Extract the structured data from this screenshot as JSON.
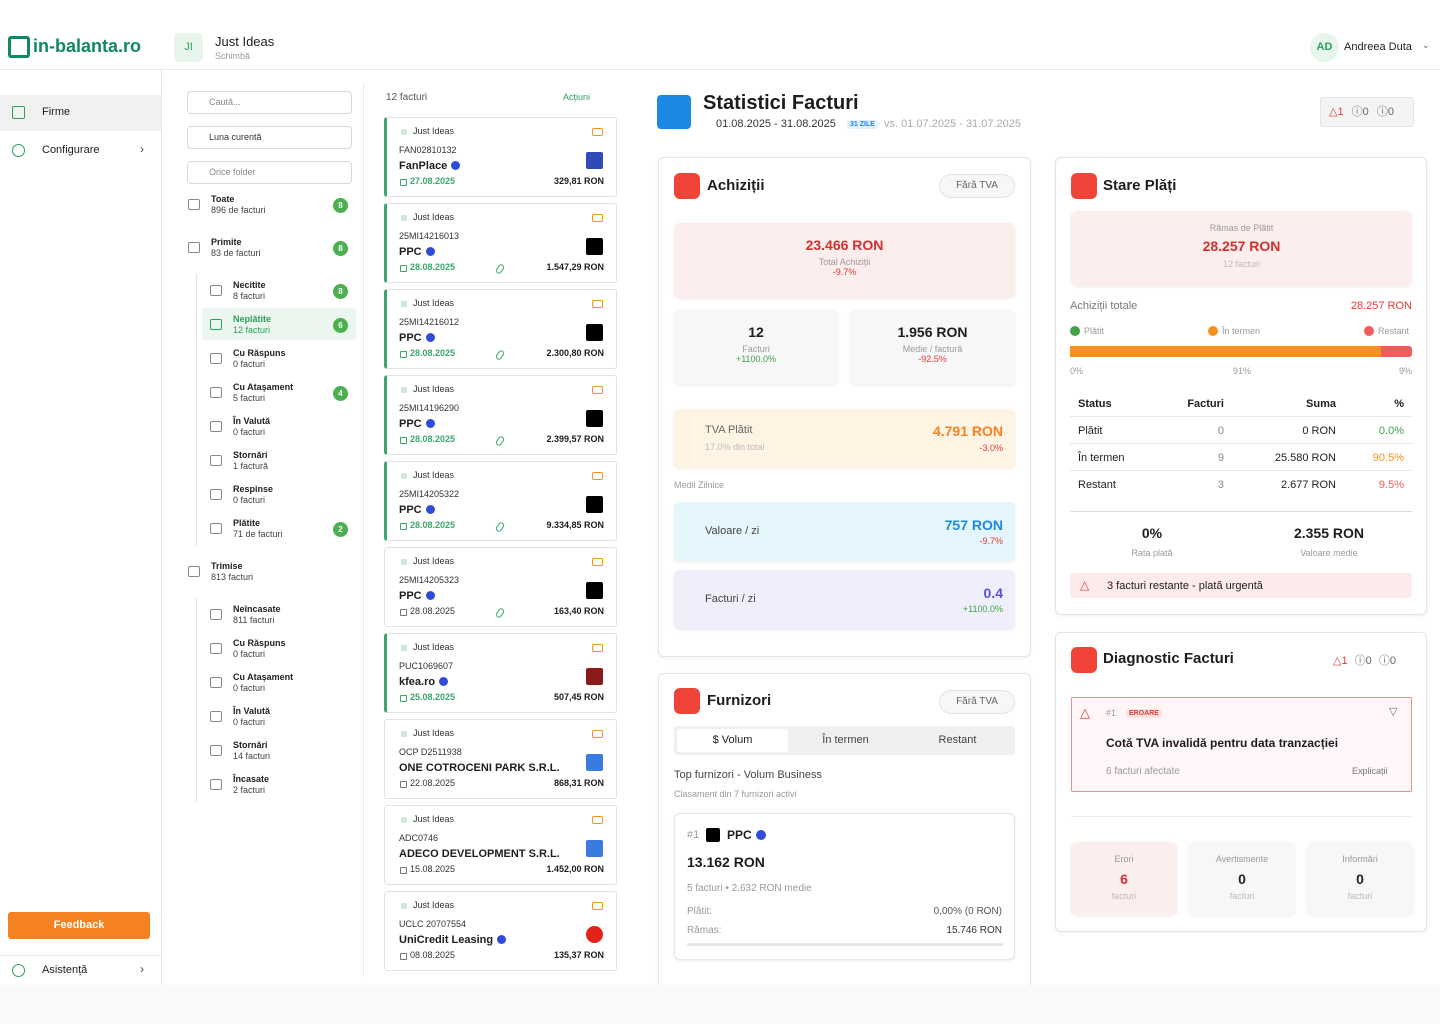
{
  "header": {
    "logo": "in-balanta.ro",
    "company": {
      "initials": "JI",
      "name": "Just Ideas",
      "action": "Schimbă"
    },
    "user": {
      "initials": "AD",
      "name": "Andreea Duta"
    }
  },
  "sidebar": {
    "nav": [
      "Firme",
      "Configurare"
    ],
    "feedback": "Feedback",
    "help": "Asistență"
  },
  "filters": {
    "search": "Caută...",
    "period": "Luna curentă",
    "folder": "Orice folder"
  },
  "folders": [
    {
      "label": "Toate",
      "count": "896 de facturi",
      "badge": 8,
      "level": 0
    },
    {
      "label": "Primite",
      "count": "83 de facturi",
      "badge": 8,
      "level": 0
    },
    {
      "label": "Necitite",
      "count": "8 facturi",
      "badge": 8,
      "level": 1
    },
    {
      "label": "Neplătite",
      "count": "12 facturi",
      "badge": 6,
      "level": 1,
      "active": true
    },
    {
      "label": "Cu Răspuns",
      "count": "0 facturi",
      "level": 1
    },
    {
      "label": "Cu Atașament",
      "count": "5 facturi",
      "badge": 4,
      "level": 1
    },
    {
      "label": "În Valută",
      "count": "0 facturi",
      "level": 1
    },
    {
      "label": "Stornări",
      "count": "1 factură",
      "level": 1
    },
    {
      "label": "Respinse",
      "count": "0 facturi",
      "level": 1
    },
    {
      "label": "Plătite",
      "count": "71 de facturi",
      "badge": 2,
      "level": 1
    },
    {
      "label": "Trimise",
      "count": "813 facturi",
      "level": 0
    },
    {
      "label": "Neîncasate",
      "count": "811 facturi",
      "level": 1
    },
    {
      "label": "Cu Răspuns",
      "count": "0 facturi",
      "level": 1
    },
    {
      "label": "Cu Atașament",
      "count": "0 facturi",
      "level": 1
    },
    {
      "label": "În Valută",
      "count": "0 facturi",
      "level": 1
    },
    {
      "label": "Stornări",
      "count": "14 facturi",
      "level": 1
    },
    {
      "label": "Încasate",
      "count": "2 facturi",
      "level": 1
    }
  ],
  "invoices": {
    "count": "12 facturi",
    "actions": "Acțiuni",
    "items": [
      {
        "company": "Just Ideas",
        "number": "FAN02810132",
        "supplier": "FanPlace",
        "verified": true,
        "date": "27.08.2025",
        "amount": "329,81 RON",
        "highlighted": true,
        "attachment": false,
        "logo_color": "#2f4bb8"
      },
      {
        "company": "Just Ideas",
        "number": "25MI14216013",
        "supplier": "PPC",
        "verified": true,
        "date": "28.08.2025",
        "amount": "1.547,29 RON",
        "highlighted": true,
        "attachment": true,
        "logo_color": "#000000"
      },
      {
        "company": "Just Ideas",
        "number": "25MI14216012",
        "supplier": "PPC",
        "verified": true,
        "date": "28.08.2025",
        "amount": "2.300,80 RON",
        "highlighted": true,
        "attachment": true,
        "logo_color": "#000000"
      },
      {
        "company": "Just Ideas",
        "number": "25MI14196290",
        "supplier": "PPC",
        "verified": true,
        "date": "28.08.2025",
        "amount": "2.399,57 RON",
        "highlighted": true,
        "attachment": true,
        "logo_color": "#000000"
      },
      {
        "company": "Just Ideas",
        "number": "25MI14205322",
        "supplier": "PPC",
        "verified": true,
        "date": "28.08.2025",
        "amount": "9.334,85 RON",
        "highlighted": true,
        "attachment": true,
        "logo_color": "#000000"
      },
      {
        "company": "Just Ideas",
        "number": "25MI14205323",
        "supplier": "PPC",
        "verified": true,
        "date": "28.08.2025",
        "amount": "163,40 RON",
        "highlighted": false,
        "attachment": true,
        "logo_color": "#000000"
      },
      {
        "company": "Just Ideas",
        "number": "PUC1069607",
        "supplier": "kfea.ro",
        "verified": true,
        "date": "25.08.2025",
        "amount": "507,45 RON",
        "highlighted": true,
        "attachment": false,
        "logo_color": "#8b1a1a"
      },
      {
        "company": "Just Ideas",
        "number": "OCP D2511938",
        "supplier": "ONE COTROCENI PARK S.R.L.",
        "verified": false,
        "date": "22.08.2025",
        "amount": "868,31 RON",
        "highlighted": false,
        "attachment": false,
        "logo_color": "#3b7be0"
      },
      {
        "company": "Just Ideas",
        "number": "ADC0746",
        "supplier": "ADECO DEVELOPMENT S.R.L.",
        "verified": false,
        "date": "15.08.2025",
        "amount": "1.452,00 RON",
        "highlighted": false,
        "attachment": false,
        "logo_color": "#3b7be0"
      },
      {
        "company": "Just Ideas",
        "number": "UCLC 20707554",
        "supplier": "UniCredit Leasing",
        "verified": true,
        "date": "08.08.2025",
        "amount": "135,37 RON",
        "highlighted": false,
        "attachment": false,
        "logo_color": "#e2231a"
      }
    ]
  },
  "stats": {
    "title": "Statistici Facturi",
    "period": "01.08.2025 - 31.08.2025",
    "days": "31 ZILE",
    "compare": "vs. 01.07.2025 - 31.07.2025",
    "alerts": {
      "errors": 1,
      "warnings": 0,
      "info": 0
    },
    "purchases": {
      "title": "Achiziții",
      "vat_toggle": "Fără TVA",
      "total": {
        "value": "23.466 RON",
        "label": "Total Achiziții",
        "change": "-9.7%"
      },
      "count": {
        "value": "12",
        "label": "Facturi",
        "change": "+1100.0%"
      },
      "average": {
        "value": "1.956 RON",
        "label": "Medie / factură",
        "change": "-92.5%"
      },
      "vat": {
        "label": "TVA Plătit",
        "share": "17.0% din total",
        "value": "4.791 RON",
        "change": "-3.0%"
      },
      "daily_title": "Medii Zilnice",
      "daily_value": {
        "label": "Valoare / zi",
        "value": "757 RON",
        "change": "-9.7%"
      },
      "daily_count": {
        "label": "Facturi / zi",
        "value": "0.4",
        "change": "+1100.0%"
      }
    },
    "payments": {
      "title": "Stare Plăți",
      "remaining_label": "Rămas de Plătit",
      "remaining": "28.257 RON",
      "remaining_count": "12 facturi",
      "total_label": "Achiziții totale",
      "total": "28.257 RON",
      "bar": [
        {
          "name": "Plătit",
          "value": 0,
          "label": "0%",
          "color": "#43a047"
        },
        {
          "name": "În termen",
          "value": 91,
          "label": "91%",
          "color": "#f5921e"
        },
        {
          "name": "Restant",
          "value": 9,
          "label": "9%",
          "color": "#f25c5c"
        }
      ],
      "table": {
        "header": [
          "Status",
          "Facturi",
          "Suma",
          "%"
        ],
        "rows": [
          [
            "Plătit",
            0,
            "0 RON",
            "0.0%"
          ],
          [
            "În termen",
            9,
            "25.580 RON",
            "90.5%"
          ],
          [
            "Restant",
            3,
            "2.677 RON",
            "9.5%"
          ]
        ]
      },
      "rate": {
        "value": "0%",
        "label": "Rata plată"
      },
      "average": {
        "value": "2.355 RON",
        "label": "Valoare medie"
      },
      "alert": "3 facturi restante - plată urgentă"
    },
    "diagnostics": {
      "title": "Diagnostic Facturi",
      "counts": {
        "errors": 1,
        "warnings": 0,
        "info": 0
      },
      "issue": {
        "rank": "#1",
        "level": "EROARE",
        "text": "Cotă TVA invalidă pentru data tranzacției",
        "affected": "6 facturi afectate",
        "action": "Explicații"
      },
      "summary": [
        {
          "label": "Erori",
          "value": 6,
          "unit": "facturi"
        },
        {
          "label": "Avertismente",
          "value": 0,
          "unit": "facturi"
        },
        {
          "label": "Informări",
          "value": 0,
          "unit": "facturi"
        }
      ]
    },
    "suppliers": {
      "title": "Furnizori",
      "vat_toggle": "Fără TVA",
      "tabs": [
        "$ Volum",
        "În termen",
        "Restant"
      ],
      "heading": "Top furnizori - Volum Business",
      "subheading": "Clasament din 7 furnizori activi",
      "top": {
        "rank": "#1",
        "name": "PPC",
        "total": "13.162 RON",
        "detail": "5 facturi • 2.632 RON medie",
        "paid_label": "Plătit:",
        "paid": "0,00% (0 RON)",
        "remaining_label": "Rămas:",
        "remaining": "15.746 RON"
      }
    }
  }
}
